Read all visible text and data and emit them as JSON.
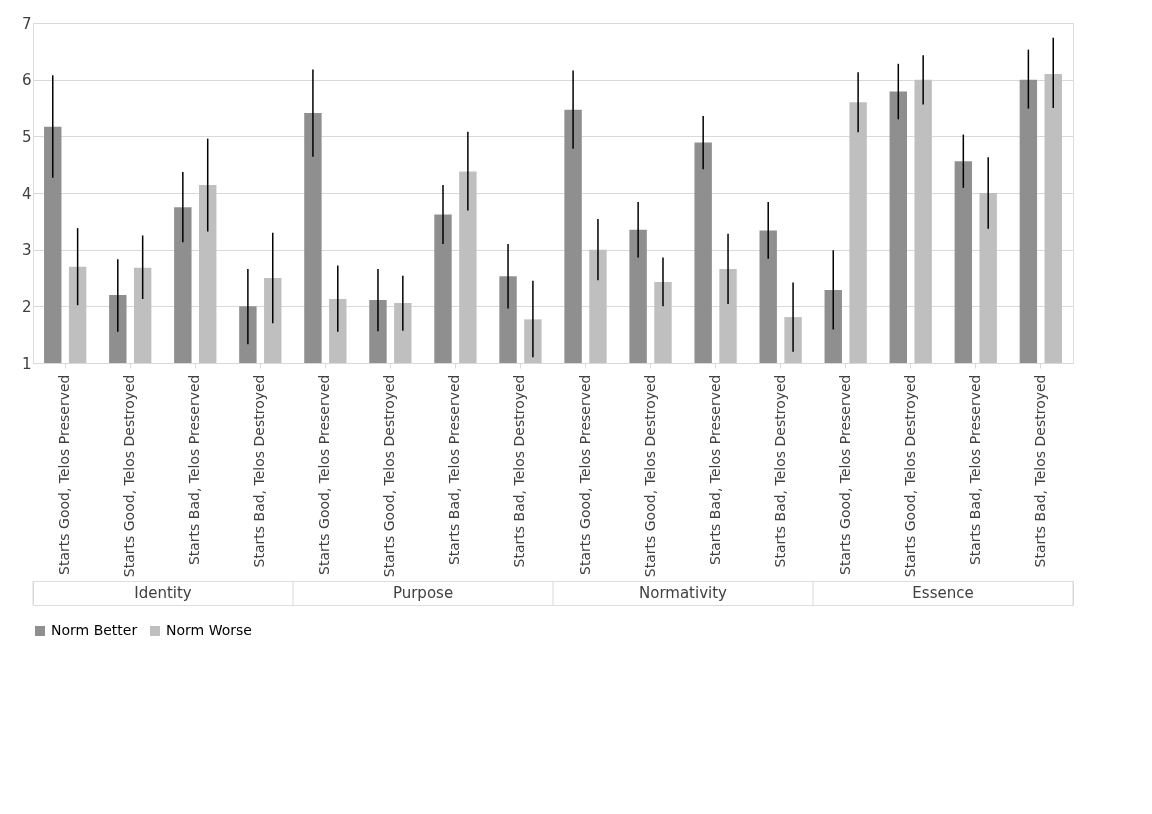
{
  "chart_data": {
    "type": "bar",
    "categories": [
      "Starts Good, Telos Preserved",
      "Starts Good, Telos Destroyed",
      "Starts Bad, Telos Preserved",
      "Starts Bad, Telos Destroyed",
      "Starts Good, Telos Preserved",
      "Starts Good, Telos Destroyed",
      "Starts Bad, Telos Preserved",
      "Starts Bad, Telos Destroyed",
      "Starts Good, Telos Preserved",
      "Starts Good, Telos Destroyed",
      "Starts Bad, Telos Preserved",
      "Starts Bad, Telos Destroyed",
      "Starts Good, Telos Preserved",
      "Starts Good, Telos Destroyed",
      "Starts Bad, Telos Preserved",
      "Starts Bad, Telos Destroyed"
    ],
    "annotations": [
      "Identity",
      "Purpose",
      "Normativity",
      "Essence"
    ],
    "series": [
      {
        "name": "Norm Better",
        "color": "#8f8f8f",
        "values": [
          5.17,
          2.2,
          3.75,
          2.0,
          5.41,
          2.11,
          3.62,
          2.53,
          5.47,
          3.35,
          4.89,
          3.34,
          2.29,
          5.79,
          4.56,
          6.0
        ],
        "errors": [
          [
            4.27,
            6.08
          ],
          [
            1.55,
            2.83
          ],
          [
            3.13,
            4.37
          ],
          [
            1.33,
            2.66
          ],
          [
            4.64,
            6.18
          ],
          [
            1.56,
            2.66
          ],
          [
            3.1,
            4.14
          ],
          [
            1.96,
            3.1
          ],
          [
            4.78,
            6.16
          ],
          [
            2.86,
            3.84
          ],
          [
            4.42,
            5.36
          ],
          [
            2.84,
            3.84
          ],
          [
            1.59,
            2.99
          ],
          [
            5.3,
            6.28
          ],
          [
            4.09,
            5.03
          ],
          [
            5.49,
            6.53
          ]
        ]
      },
      {
        "name": "Norm Worse",
        "color": "#bfbfbf",
        "values": [
          2.7,
          2.68,
          4.14,
          2.5,
          2.13,
          2.06,
          4.38,
          1.77,
          3.0,
          2.43,
          2.66,
          1.81,
          5.6,
          6.0,
          4.0,
          6.1
        ],
        "errors": [
          [
            2.02,
            3.38
          ],
          [
            2.13,
            3.25
          ],
          [
            3.32,
            4.96
          ],
          [
            1.7,
            3.3
          ],
          [
            1.55,
            2.72
          ],
          [
            1.57,
            2.54
          ],
          [
            3.69,
            5.08
          ],
          [
            1.1,
            2.45
          ],
          [
            2.46,
            3.54
          ],
          [
            2.0,
            2.86
          ],
          [
            2.04,
            3.28
          ],
          [
            1.2,
            2.42
          ],
          [
            5.07,
            6.13
          ],
          [
            5.56,
            6.43
          ],
          [
            3.37,
            4.63
          ],
          [
            5.5,
            6.74
          ]
        ]
      }
    ],
    "ylim": [
      1,
      7
    ],
    "yticks": [
      1,
      2,
      3,
      4,
      5,
      6,
      7
    ],
    "grid": "y",
    "legend": "bottom"
  }
}
